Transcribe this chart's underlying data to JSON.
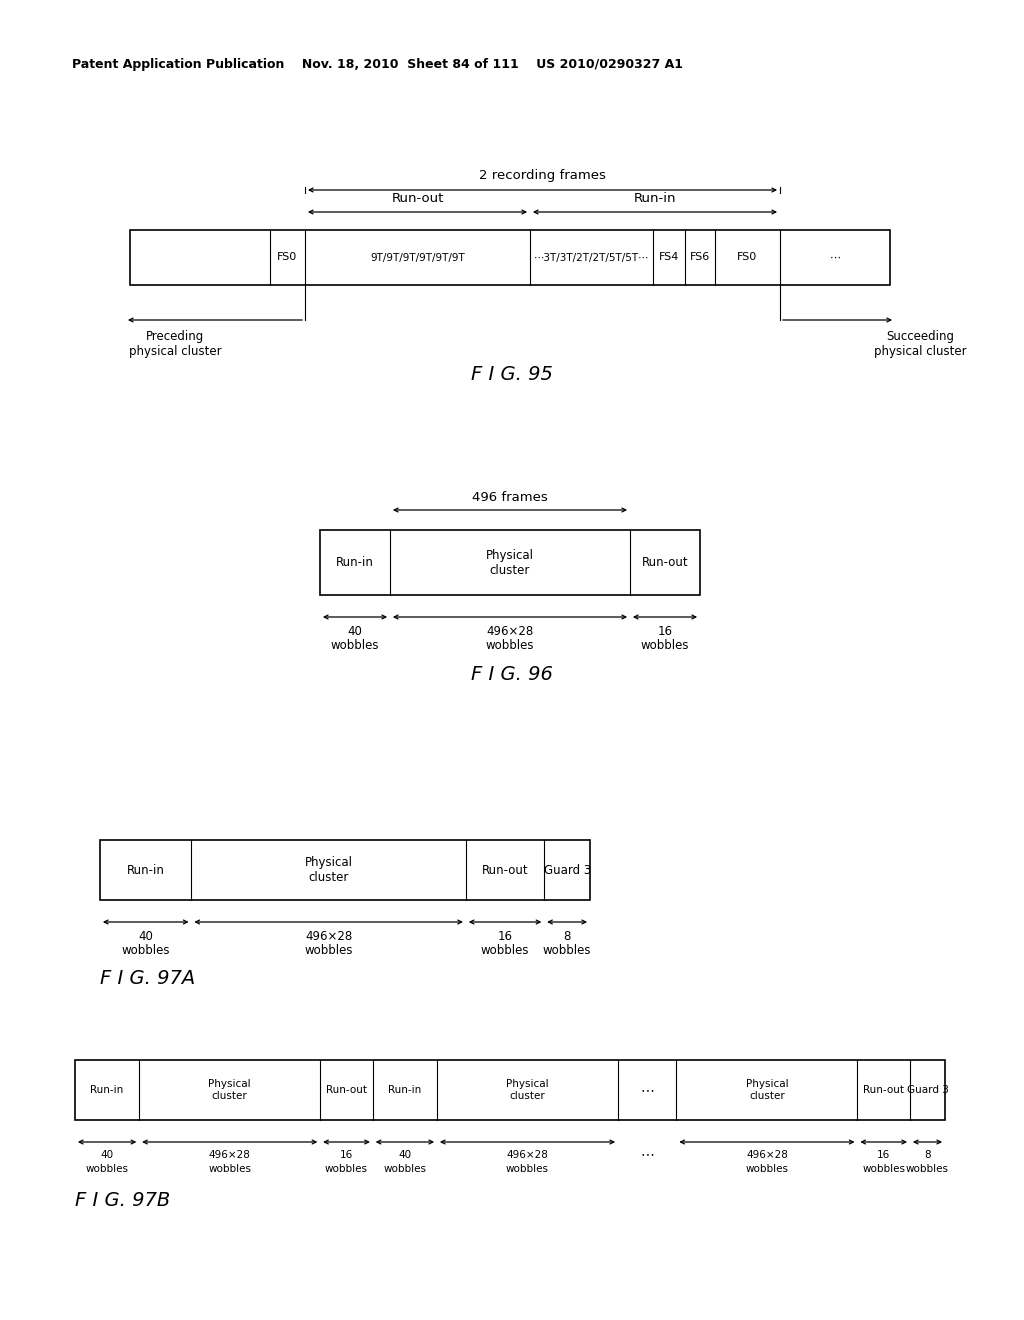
{
  "bg_color": "#ffffff",
  "header_text": "Patent Application Publication    Nov. 18, 2010  Sheet 84 of 111    US 2010/0290327 A1",
  "fig95": {
    "title": "F I G. 95"
  },
  "fig96": {
    "title": "F I G. 96"
  },
  "fig97a": {
    "title": "F I G. 97A"
  },
  "fig97b": {
    "title": "F I G. 97B"
  }
}
